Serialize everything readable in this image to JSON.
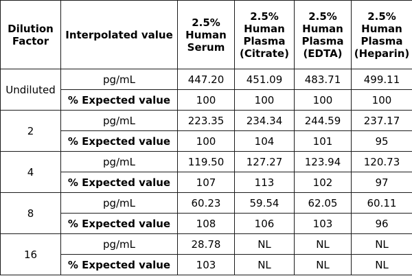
{
  "headers": {
    "dilution": "Dilution Factor",
    "interpolated": "Interpolated value",
    "serum": "2.5% Human Serum",
    "citrate": "2.5% Human Plasma (Citrate)",
    "edta": "2.5% Human Plasma (EDTA)",
    "heparin": "2.5% Human Plasma (Heparin)"
  },
  "rows": [
    {
      "factor": "Undiluted",
      "unit_label": "pg/mL",
      "pct_label": "% Expected value",
      "unit_values": [
        "447.20",
        "451.09",
        "483.71",
        "499.11"
      ],
      "pct_values": [
        "100",
        "100",
        "100",
        "100"
      ]
    },
    {
      "factor": "2",
      "unit_label": "pg/mL",
      "pct_label": "% Expected value",
      "unit_values": [
        "223.35",
        "234.34",
        "244.59",
        "237.17"
      ],
      "pct_values": [
        "100",
        "104",
        "101",
        "95"
      ]
    },
    {
      "factor": "4",
      "unit_label": "pg/mL",
      "pct_label": "% Expected value",
      "unit_values": [
        "119.50",
        "127.27",
        "123.94",
        "120.73"
      ],
      "pct_values": [
        "107",
        "113",
        "102",
        "97"
      ]
    },
    {
      "factor": "8",
      "unit_label": "pg/mL",
      "pct_label": "% Expected value",
      "unit_values": [
        "60.23",
        "59.54",
        "62.05",
        "60.11"
      ],
      "pct_values": [
        "108",
        "106",
        "103",
        "96"
      ]
    },
    {
      "factor": "16",
      "unit_label": "pg/mL",
      "pct_label": "% Expected value",
      "unit_values": [
        "28.78",
        "NL",
        "NL",
        "NL"
      ],
      "pct_values": [
        "103",
        "NL",
        "NL",
        "NL"
      ]
    }
  ]
}
